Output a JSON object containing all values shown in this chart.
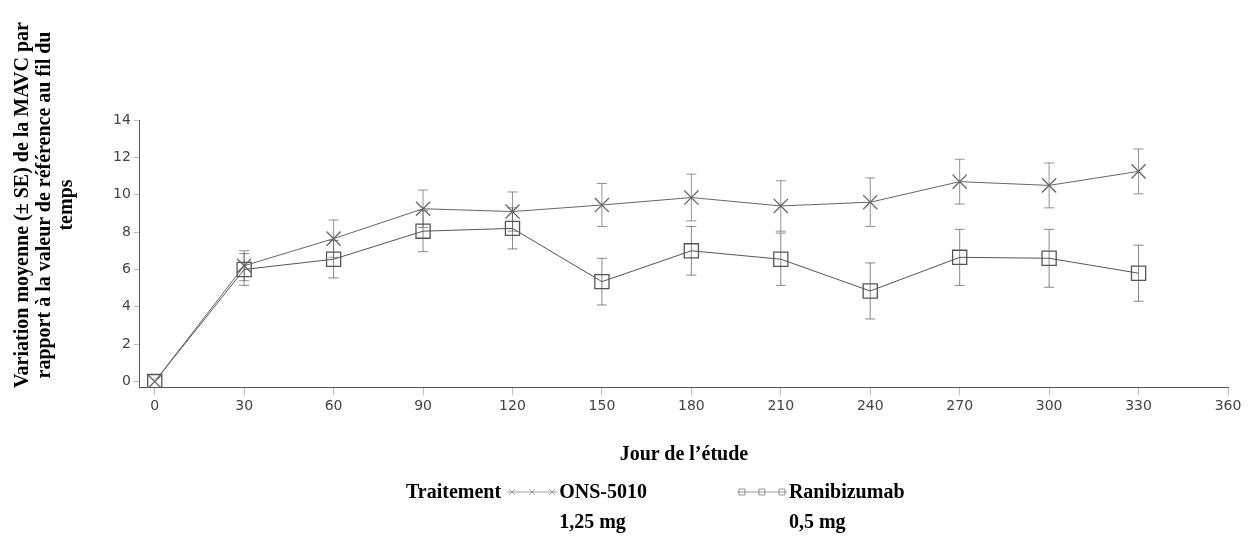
{
  "chart_data": {
    "type": "line",
    "xlabel": "Jour de l’étude",
    "ylabel": "Variation moyenne (± SE) de la MAVC par rapport à la valeur de référence au fil du temps",
    "legend_title": "Traitement",
    "legend": "bottom",
    "grid": false,
    "line_style": "solid",
    "x": [
      0,
      30,
      60,
      90,
      120,
      150,
      180,
      210,
      240,
      270,
      300,
      330
    ],
    "xlim": [
      -5,
      360
    ],
    "xticks": [
      0,
      30,
      60,
      90,
      120,
      150,
      180,
      210,
      240,
      270,
      300,
      330,
      360
    ],
    "ylim": [
      -0.3,
      14
    ],
    "yticks": [
      0,
      2,
      4,
      6,
      8,
      10,
      12,
      14
    ],
    "series": [
      {
        "name": "ONS-5010 1,25 mg",
        "color": "#666666",
        "marker": "cross",
        "values": [
          0,
          6.2,
          7.65,
          9.25,
          9.1,
          9.45,
          9.85,
          9.4,
          9.6,
          10.7,
          10.5,
          11.25
        ],
        "errors": [
          null,
          0.8,
          1.0,
          1.0,
          1.05,
          1.15,
          1.25,
          1.35,
          1.3,
          1.2,
          1.2,
          1.2
        ]
      },
      {
        "name": "Ranibizumab 0,5 mg",
        "color": "#555555",
        "marker": "square",
        "values": [
          0,
          6.0,
          6.55,
          8.05,
          8.2,
          5.35,
          7.0,
          6.55,
          4.85,
          6.65,
          6.6,
          5.8
        ],
        "errors": [
          null,
          0.85,
          1.0,
          1.1,
          1.1,
          1.25,
          1.3,
          1.4,
          1.5,
          1.5,
          1.55,
          1.5
        ]
      }
    ]
  }
}
